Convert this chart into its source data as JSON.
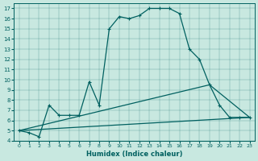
{
  "xlabel": "Humidex (Indice chaleur)",
  "background_color": "#c8e8e0",
  "line_color": "#006060",
  "xlim": [
    -0.5,
    23.5
  ],
  "ylim": [
    4,
    17.5
  ],
  "xticks": [
    0,
    1,
    2,
    3,
    4,
    5,
    6,
    7,
    8,
    9,
    10,
    11,
    12,
    13,
    14,
    15,
    16,
    17,
    18,
    19,
    20,
    21,
    22,
    23
  ],
  "yticks": [
    4,
    5,
    6,
    7,
    8,
    9,
    10,
    11,
    12,
    13,
    14,
    15,
    16,
    17
  ],
  "series_main": {
    "x": [
      0,
      1,
      2,
      3,
      4,
      5,
      6,
      7,
      8,
      9,
      10,
      11,
      12,
      13,
      14,
      15,
      16,
      17,
      18,
      19,
      20,
      21,
      22,
      23
    ],
    "y": [
      5.0,
      4.8,
      4.4,
      7.5,
      6.5,
      6.5,
      6.5,
      9.8,
      7.5,
      15.0,
      16.2,
      16.0,
      16.3,
      17.0,
      17.0,
      17.0,
      16.5,
      13.0,
      12.0,
      9.5,
      7.5,
      6.3,
      6.3,
      6.3
    ]
  },
  "series_line1": {
    "x": [
      0,
      19,
      23
    ],
    "y": [
      5.0,
      9.5,
      6.3
    ]
  },
  "series_line2": {
    "x": [
      0,
      23
    ],
    "y": [
      5.0,
      6.3
    ]
  }
}
